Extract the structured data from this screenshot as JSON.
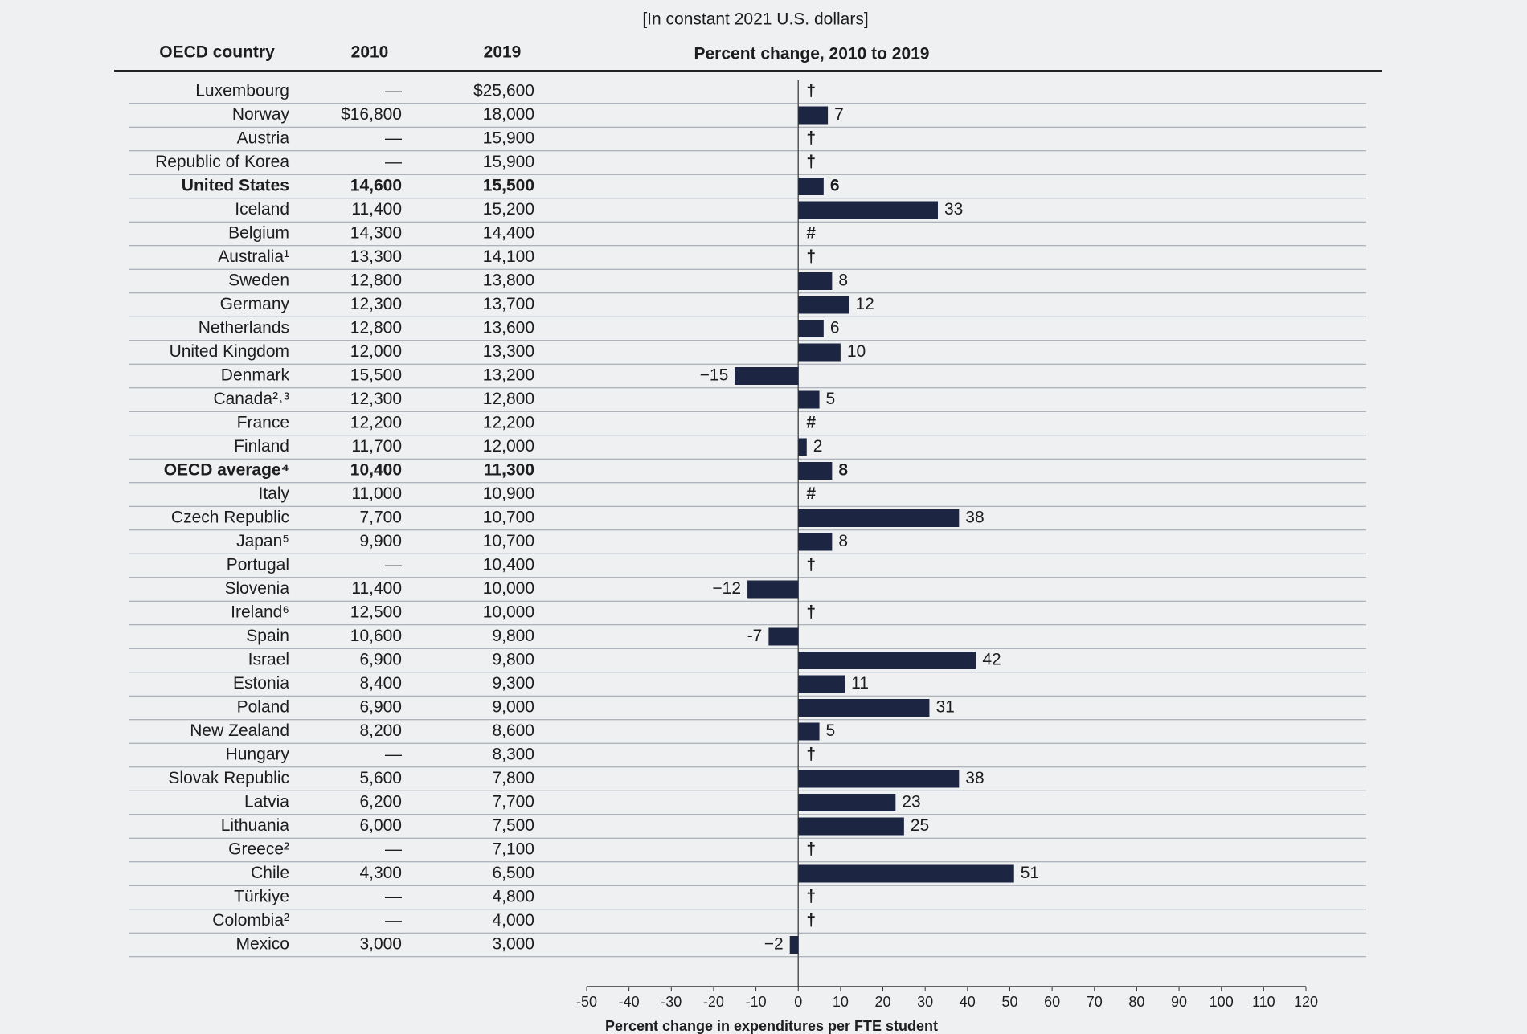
{
  "table": {
    "headers": [
      "OECD country",
      "2010",
      "2019"
    ],
    "highlight_rows": [
      4,
      16
    ],
    "rows": [
      [
        "Luxembourg",
        "—",
        "$25,600"
      ],
      [
        "Norway",
        "$16,800",
        "18,000"
      ],
      [
        "Austria",
        "—",
        "15,900"
      ],
      [
        "Republic of Korea",
        "—",
        "15,900"
      ],
      [
        "United States",
        "14,600",
        "15,500"
      ],
      [
        "Iceland",
        "11,400",
        "15,200"
      ],
      [
        "Belgium",
        "14,300",
        "14,400"
      ],
      [
        "Australia¹",
        "13,300",
        "14,100"
      ],
      [
        "Sweden",
        "12,800",
        "13,800"
      ],
      [
        "Germany",
        "12,300",
        "13,700"
      ],
      [
        "Netherlands",
        "12,800",
        "13,600"
      ],
      [
        "United Kingdom",
        "12,000",
        "13,300"
      ],
      [
        "Denmark",
        "15,500",
        "13,200"
      ],
      [
        "Canada²˒³",
        "12,300",
        "12,800"
      ],
      [
        "France",
        "12,200",
        "12,200"
      ],
      [
        "Finland",
        "11,700",
        "12,000"
      ],
      [
        "OECD average⁴",
        "10,400",
        "11,300"
      ],
      [
        "Italy",
        "11,000",
        "10,900"
      ],
      [
        "Czech Republic",
        "7,700",
        "10,700"
      ],
      [
        "Japan⁵",
        "9,900",
        "10,700"
      ],
      [
        "Portugal",
        "—",
        "10,400"
      ],
      [
        "Slovenia",
        "11,400",
        "10,000"
      ],
      [
        "Ireland⁶",
        "12,500",
        "10,000"
      ],
      [
        "Spain",
        "10,600",
        "9,800"
      ],
      [
        "Israel",
        "6,900",
        "9,800"
      ],
      [
        "Estonia",
        "8,400",
        "9,300"
      ],
      [
        "Poland",
        "6,900",
        "9,000"
      ],
      [
        "New Zealand",
        "8,200",
        "8,600"
      ],
      [
        "Hungary",
        "—",
        "8,300"
      ],
      [
        "Slovak Republic",
        "5,600",
        "7,800"
      ],
      [
        "Latvia",
        "6,200",
        "7,700"
      ],
      [
        "Lithuania",
        "6,000",
        "7,500"
      ],
      [
        "Greece²",
        "—",
        "7,100"
      ],
      [
        "Chile",
        "4,300",
        "6,500"
      ],
      [
        "Türkiye",
        "—",
        "4,800"
      ],
      [
        "Colombia²",
        "—",
        "4,000"
      ],
      [
        "Mexico",
        "3,000",
        "3,000"
      ]
    ]
  },
  "chart_data": {
    "type": "bar",
    "orientation": "horizontal",
    "subtitle": "[In constant 2021 U.S. dollars]",
    "title": "Percent change, 2010 to 2019",
    "x_label": "Percent change in expenditures per FTE student",
    "color": "#1c2541",
    "values": [
      null,
      7,
      null,
      null,
      6,
      33,
      null,
      null,
      8,
      12,
      6,
      10,
      -15,
      5,
      null,
      2,
      8,
      null,
      38,
      8,
      null,
      -12,
      null,
      -7,
      42,
      11,
      31,
      5,
      null,
      38,
      23,
      25,
      null,
      51,
      null,
      null,
      -2
    ],
    "value_labels": [
      "†",
      "7",
      "†",
      "†",
      "6",
      "33",
      "#",
      "†",
      "8",
      "12",
      "6",
      "10",
      "−15",
      "5",
      "#",
      "2",
      "8",
      "#",
      "38",
      "8",
      "†",
      "−12",
      "†",
      "-7",
      "42",
      "11",
      "31",
      "5",
      "†",
      "38",
      "23",
      "25",
      "†",
      "51",
      "†",
      "†",
      "−2"
    ],
    "xlim": [
      -50,
      120
    ],
    "xticks": [
      -50,
      -40,
      -30,
      -20,
      -10,
      0,
      10,
      20,
      30,
      40,
      50,
      60,
      70,
      80,
      90,
      100,
      110,
      120
    ]
  }
}
